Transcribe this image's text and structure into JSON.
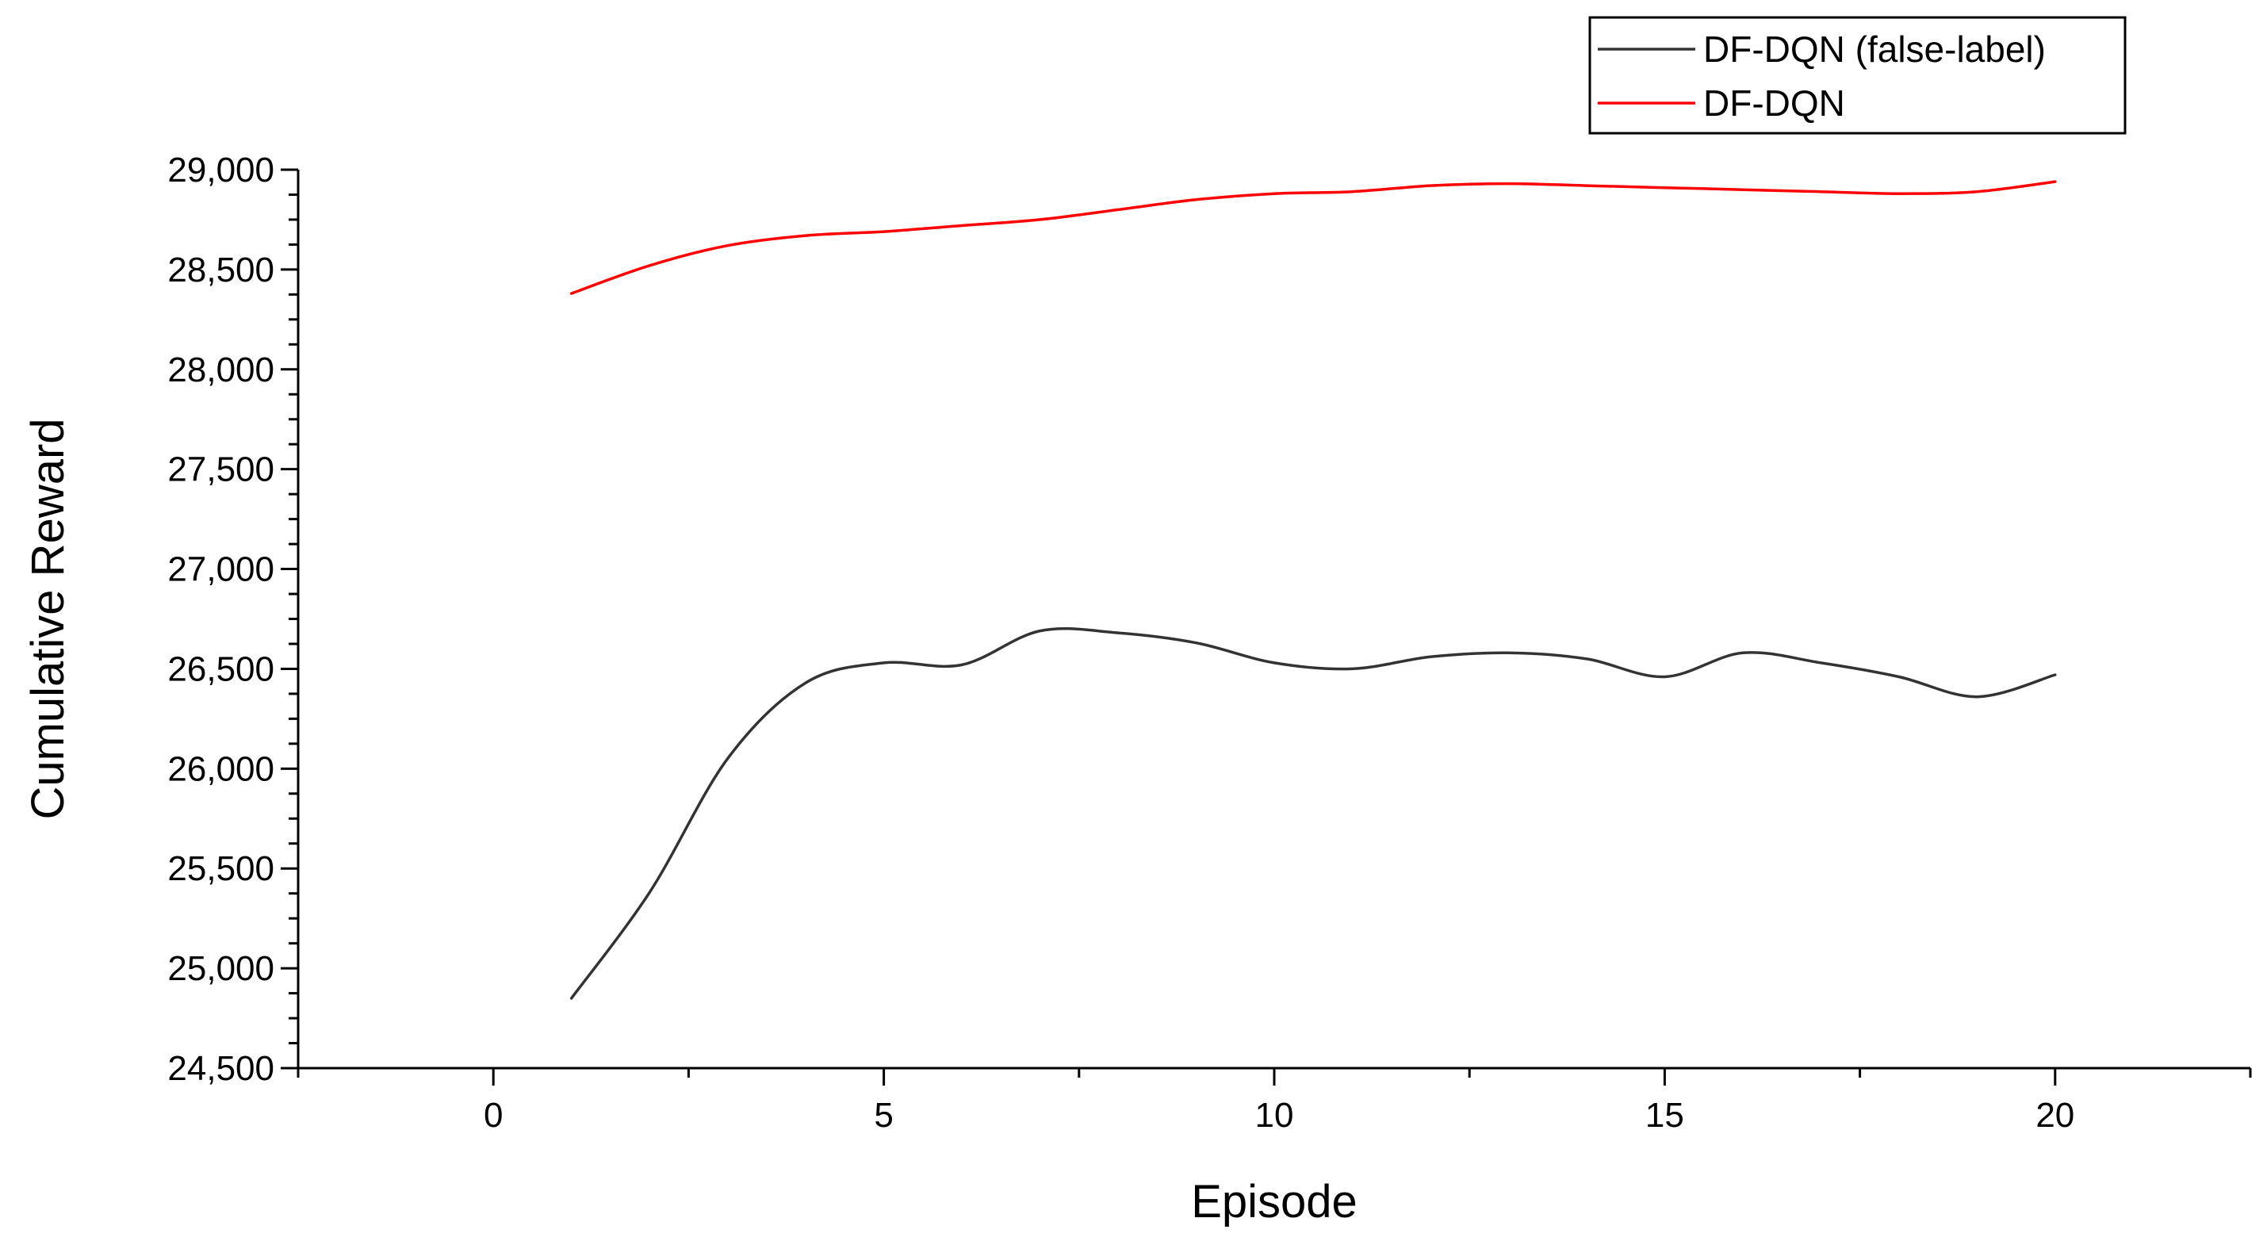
{
  "chart_data": {
    "type": "line",
    "title": "",
    "xlabel": "Episode",
    "ylabel": "Cumulative Reward",
    "xlim": [
      -2.5,
      22.5
    ],
    "ylim": [
      24500,
      29000
    ],
    "xticks": [
      0,
      5,
      10,
      15,
      20
    ],
    "xtick_labels": [
      "0",
      "5",
      "10",
      "15",
      "20"
    ],
    "yticks": [
      24500,
      25000,
      25500,
      26000,
      26500,
      27000,
      27500,
      28000,
      28500,
      29000
    ],
    "ytick_labels": [
      "24,500",
      "25,000",
      "25,500",
      "26,000",
      "26,500",
      "27,000",
      "27,500",
      "28,000",
      "28,500",
      "29,000"
    ],
    "grid": false,
    "legend_position": "top-right",
    "x": [
      1,
      2,
      3,
      4,
      5,
      6,
      7,
      8,
      9,
      10,
      11,
      12,
      13,
      14,
      15,
      16,
      17,
      18,
      19,
      20
    ],
    "series": [
      {
        "name": "DF-DQN (false-label)",
        "color": "#333333",
        "values": [
          24850,
          25380,
          26050,
          26430,
          26530,
          26520,
          26690,
          26680,
          26630,
          26530,
          26500,
          26560,
          26580,
          26550,
          26460,
          26580,
          26530,
          26460,
          26360,
          26470
        ]
      },
      {
        "name": "DF-DQN",
        "color": "#ff0000",
        "values": [
          28380,
          28520,
          28620,
          28670,
          28690,
          28720,
          28750,
          28800,
          28850,
          28880,
          28890,
          28920,
          28930,
          28920,
          28910,
          28900,
          28890,
          28880,
          28890,
          28940
        ]
      }
    ]
  }
}
